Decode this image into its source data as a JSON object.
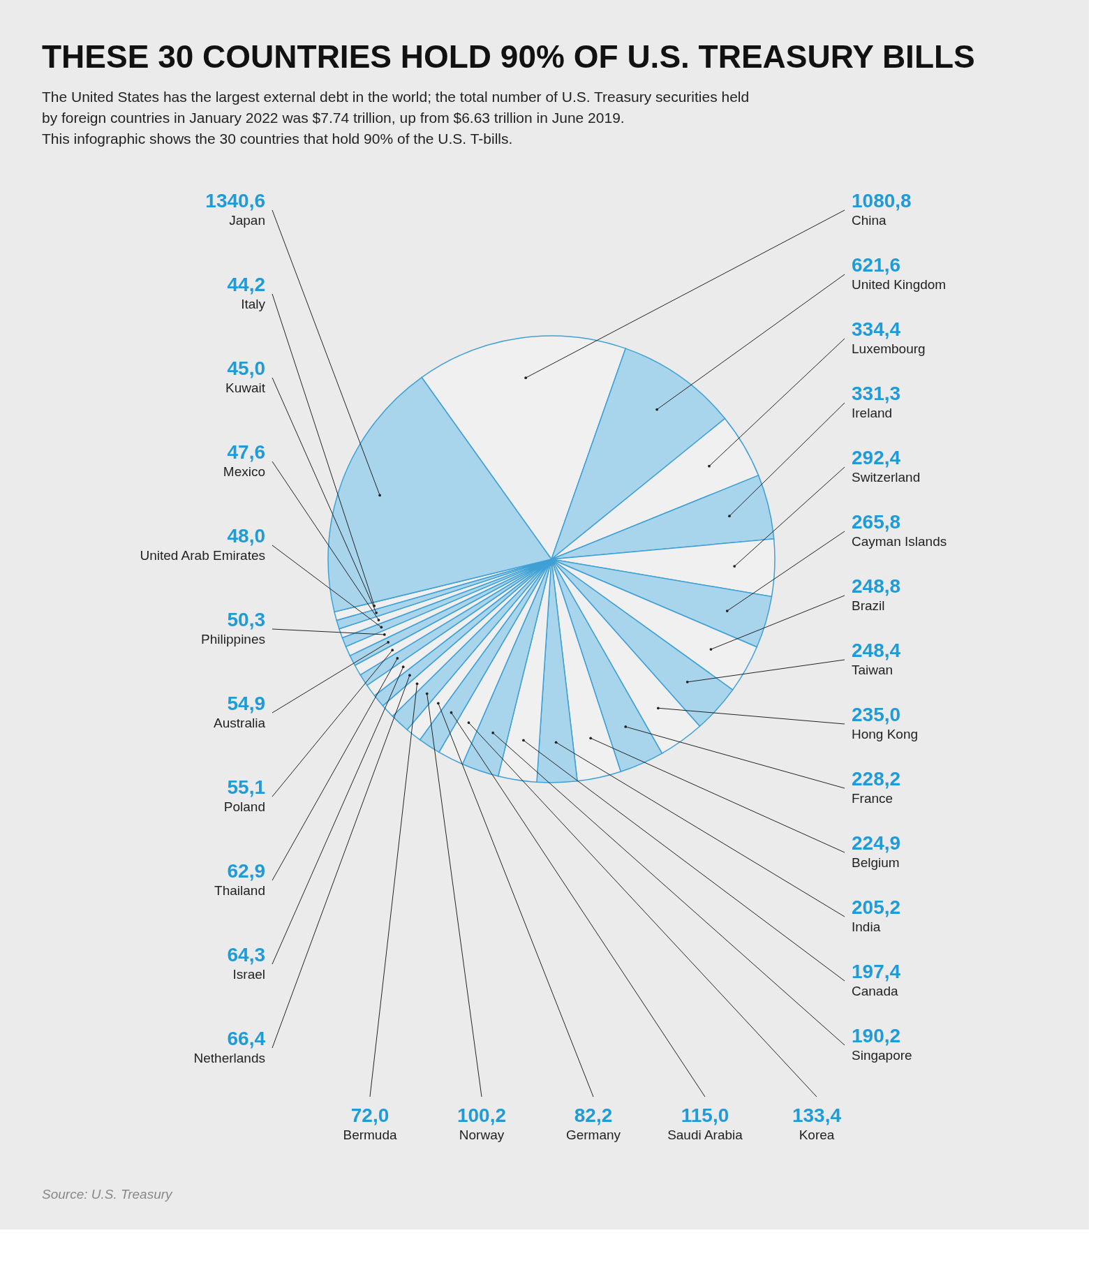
{
  "chart_data": {
    "type": "pie",
    "title": "THESE 30 COUNTRIES HOLD 90% OF U.S. TREASURY BILLS",
    "subtitle": [
      "The United States has the largest external debt in the world; the total number of U.S. Treasury securities held by foreign countries in January 2022 was $7.74 trillion, up from $6.63 trillion in June 2019.",
      "This infographic shows the 30 countries that hold 90% of the U.S. T-bills."
    ],
    "categories": [
      "China",
      "United Kingdom",
      "Luxembourg",
      "Ireland",
      "Switzerland",
      "Cayman Islands",
      "Brazil",
      "Taiwan",
      "Hong Kong",
      "France",
      "Belgium",
      "India",
      "Canada",
      "Singapore",
      "Korea",
      "Saudi Arabia",
      "Germany",
      "Norway",
      "Bermuda",
      "Netherlands",
      "Israel",
      "Thailand",
      "Poland",
      "Australia",
      "Philippines",
      "United Arab Emirates",
      "Mexico",
      "Kuwait",
      "Italy",
      "Japan"
    ],
    "values": [
      1080.8,
      621.6,
      334.4,
      331.3,
      292.4,
      265.8,
      248.8,
      248.4,
      235.0,
      228.2,
      224.9,
      205.2,
      197.4,
      190.2,
      133.4,
      115.0,
      82.2,
      100.2,
      72.0,
      66.4,
      64.3,
      62.9,
      55.1,
      54.9,
      50.3,
      48.0,
      47.6,
      45.0,
      44.2,
      1340.6
    ],
    "value_labels": [
      "1080,8",
      "621,6",
      "334,4",
      "331,3",
      "292,4",
      "265,8",
      "248,8",
      "248,4",
      "235,0",
      "228,2",
      "224,9",
      "205,2",
      "197,4",
      "190,2",
      "133,4",
      "115,0",
      "82,2",
      "100,2",
      "72,0",
      "66,4",
      "64,3",
      "62,9",
      "55,1",
      "54,9",
      "50,3",
      "48,0",
      "47,6",
      "45,0",
      "44,2",
      "1340,6"
    ],
    "colors": [
      "#f0f0f0",
      "#a9d5ec",
      "#f0f0f0",
      "#a9d5ec",
      "#f0f0f0",
      "#a9d5ec",
      "#f0f0f0",
      "#a9d5ec",
      "#f0f0f0",
      "#a9d5ec",
      "#f0f0f0",
      "#a9d5ec",
      "#f0f0f0",
      "#a9d5ec",
      "#f0f0f0",
      "#a9d5ec",
      "#f0f0f0",
      "#a9d5ec",
      "#f0f0f0",
      "#a9d5ec",
      "#f0f0f0",
      "#a9d5ec",
      "#f0f0f0",
      "#a9d5ec",
      "#f0f0f0",
      "#a9d5ec",
      "#f0f0f0",
      "#a9d5ec",
      "#f0f0f0",
      "#a9d5ec"
    ],
    "annotations": [
      "Source: U.S. Treasury"
    ],
    "legend": false
  }
}
